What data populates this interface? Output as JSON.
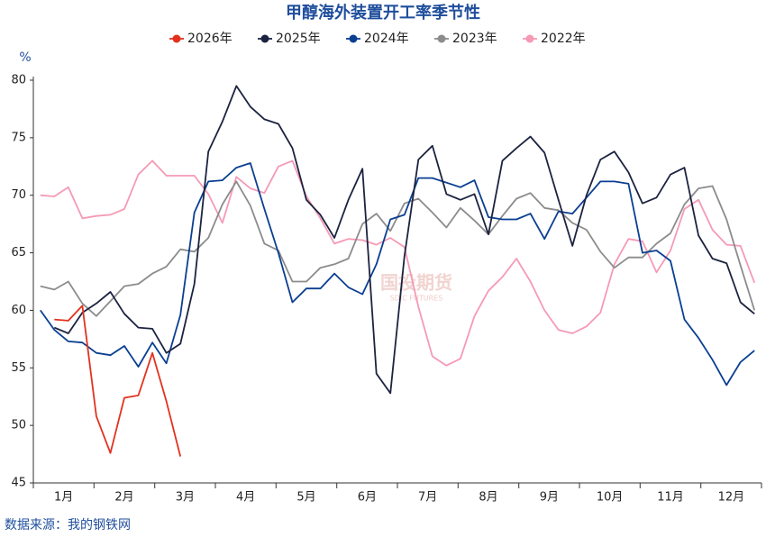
{
  "chart_data": {
    "type": "line",
    "title": "甲醇海外装置开工率季节性",
    "y_unit": "%",
    "source": "数据来源：我的钢铁网",
    "watermark": [
      "国投期货",
      "SDIC FUTURES"
    ],
    "x": [
      1,
      2,
      3,
      4,
      5,
      6,
      7,
      8,
      9,
      10,
      11,
      12,
      13,
      14,
      15,
      16,
      17,
      18,
      19,
      20,
      21,
      22,
      23,
      24,
      25,
      26,
      27,
      28,
      29,
      30,
      31,
      32,
      33,
      34,
      35,
      36,
      37,
      38,
      39,
      40,
      41,
      42,
      43,
      44,
      45,
      46,
      47,
      48,
      49,
      50,
      51,
      52
    ],
    "xlim": [
      0.5,
      52.5
    ],
    "xticks": [
      0.5,
      4.83,
      9.17,
      13.5,
      17.83,
      22.17,
      26.5,
      30.83,
      35.17,
      39.5,
      43.83,
      48.17,
      52.5
    ],
    "months": [
      "1月",
      "2月",
      "3月",
      "4月",
      "5月",
      "6月",
      "7月",
      "8月",
      "9月",
      "10月",
      "11月",
      "12月"
    ],
    "ylim": [
      45,
      80
    ],
    "yticks": [
      45,
      50,
      55,
      60,
      65,
      70,
      75,
      80
    ],
    "grid": false,
    "legend": "top",
    "series": [
      {
        "name": "2026年",
        "color": "#e2321f",
        "values": [
          null,
          59.2,
          59.1,
          60.4,
          50.8,
          47.6,
          52.4,
          52.6,
          56.3,
          52.1,
          47.3,
          null,
          null,
          null,
          null,
          null,
          null,
          null,
          null,
          null,
          null,
          null,
          null,
          null,
          null,
          null,
          null,
          null,
          null,
          null,
          null,
          null,
          null,
          null,
          null,
          null,
          null,
          null,
          null,
          null,
          null,
          null,
          null,
          null,
          null,
          null,
          null,
          null,
          null,
          null,
          null,
          null
        ]
      },
      {
        "name": "2025年",
        "color": "#1c2340",
        "values": [
          null,
          58.5,
          58.0,
          59.8,
          60.6,
          61.6,
          59.7,
          58.5,
          58.4,
          56.3,
          57.1,
          62.3,
          73.8,
          76.4,
          79.5,
          77.7,
          76.6,
          76.2,
          74.1,
          69.6,
          68.3,
          66.3,
          69.6,
          72.3,
          54.5,
          52.8,
          64.7,
          73.1,
          74.3,
          70.1,
          69.6,
          70.1,
          66.6,
          73.0,
          74.1,
          75.1,
          73.7,
          69.6,
          65.6,
          70.0,
          73.1,
          73.8,
          72.0,
          69.3,
          69.8,
          71.8,
          72.4,
          66.5,
          64.5,
          64.1,
          60.7,
          59.7
        ]
      },
      {
        "name": "2024年",
        "color": "#0b3f92",
        "values": [
          60.0,
          58.3,
          57.3,
          57.2,
          56.3,
          56.1,
          56.9,
          55.1,
          57.2,
          55.4,
          59.6,
          68.5,
          71.2,
          71.3,
          72.4,
          72.8,
          68.8,
          65.0,
          60.7,
          61.9,
          61.9,
          63.2,
          62.0,
          61.4,
          64.0,
          67.9,
          68.3,
          71.5,
          71.5,
          71.1,
          70.7,
          71.3,
          68.1,
          67.9,
          67.9,
          68.4,
          66.2,
          68.6,
          68.4,
          69.8,
          71.2,
          71.2,
          71.0,
          65.0,
          65.2,
          64.3,
          59.2,
          57.6,
          55.7,
          53.5,
          55.5,
          56.5
        ]
      },
      {
        "name": "2023年",
        "color": "#8c8c8c",
        "values": [
          62.1,
          61.8,
          62.5,
          60.6,
          59.5,
          60.8,
          62.1,
          62.3,
          63.2,
          63.8,
          65.3,
          65.1,
          66.3,
          69.2,
          71.2,
          69.1,
          65.8,
          65.2,
          62.5,
          62.5,
          63.7,
          64.0,
          64.5,
          67.5,
          68.4,
          66.9,
          69.3,
          69.7,
          68.5,
          67.2,
          68.9,
          67.8,
          66.6,
          68.2,
          69.7,
          70.2,
          68.9,
          68.7,
          67.6,
          67.0,
          65.1,
          63.7,
          64.6,
          64.6,
          65.8,
          66.7,
          69.2,
          70.6,
          70.8,
          67.9,
          63.9,
          60.0
        ]
      },
      {
        "name": "2022年",
        "color": "#f59ab5",
        "values": [
          70.0,
          69.9,
          70.7,
          68.0,
          68.2,
          68.3,
          68.8,
          71.8,
          73.0,
          71.7,
          71.7,
          71.7,
          70.1,
          67.6,
          71.6,
          70.6,
          70.2,
          72.5,
          73.0,
          69.9,
          68.0,
          65.8,
          66.2,
          66.1,
          65.7,
          66.3,
          65.5,
          60.3,
          56.0,
          55.2,
          55.8,
          59.5,
          61.7,
          62.9,
          64.5,
          62.5,
          60.0,
          58.3,
          58.0,
          58.6,
          59.8,
          64.0,
          66.2,
          66.0,
          63.3,
          65.2,
          68.8,
          69.6,
          67.0,
          65.7,
          65.6,
          62.4
        ]
      }
    ]
  }
}
